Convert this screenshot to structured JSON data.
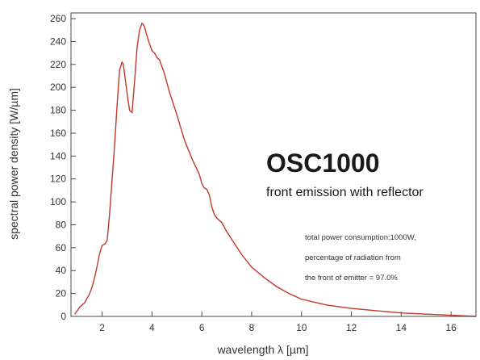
{
  "chart_data": {
    "type": "line",
    "title": "OSC1000",
    "subtitle": "front emission with reflector",
    "annotations": [
      "total power consumption:1000W,",
      "percentage of radiation from",
      "the front of emitter = 97.0%"
    ],
    "xlabel": "wavelength λ [µm]",
    "ylabel": "spectral power density [W/µm]",
    "xlim": [
      0.75,
      17
    ],
    "ylim": [
      0,
      265
    ],
    "x_ticks": [
      2,
      4,
      6,
      8,
      10,
      12,
      14,
      16
    ],
    "y_ticks": [
      0,
      20,
      40,
      60,
      80,
      100,
      120,
      140,
      160,
      180,
      200,
      220,
      240,
      260
    ],
    "grid": false,
    "line_color": "#c0392b",
    "series": [
      {
        "x": [
          0.9,
          1.0,
          1.1,
          1.2,
          1.3,
          1.4,
          1.5,
          1.6,
          1.7,
          1.8,
          1.9,
          2.0,
          2.1,
          2.2,
          2.3,
          2.4,
          2.5,
          2.6,
          2.7,
          2.8,
          2.85,
          2.9,
          3.0,
          3.1,
          3.2,
          3.3,
          3.4,
          3.5,
          3.6,
          3.65,
          3.7,
          3.8,
          3.9,
          4.0,
          4.1,
          4.2,
          4.3,
          4.5,
          4.7,
          5.0,
          5.3,
          5.6,
          5.9,
          6.0,
          6.1,
          6.2,
          6.3,
          6.4,
          6.5,
          6.6,
          6.8,
          7.0,
          7.3,
          7.6,
          8.0,
          8.5,
          9.0,
          9.5,
          10.0,
          11.0,
          12.0,
          13.0,
          14.0,
          15.0,
          16.0,
          17.0
        ],
        "y": [
          2,
          5,
          8,
          10,
          12,
          16,
          20,
          26,
          34,
          44,
          55,
          62,
          63,
          66,
          90,
          120,
          150,
          185,
          215,
          222,
          220,
          212,
          195,
          180,
          178,
          205,
          235,
          250,
          256,
          255,
          253,
          245,
          238,
          232,
          230,
          226,
          224,
          212,
          196,
          176,
          154,
          138,
          124,
          116,
          112,
          111,
          106,
          96,
          89,
          86,
          82,
          74,
          64,
          54,
          43,
          34,
          26,
          20,
          15,
          10,
          7,
          5,
          3,
          2,
          1,
          0
        ]
      }
    ]
  }
}
